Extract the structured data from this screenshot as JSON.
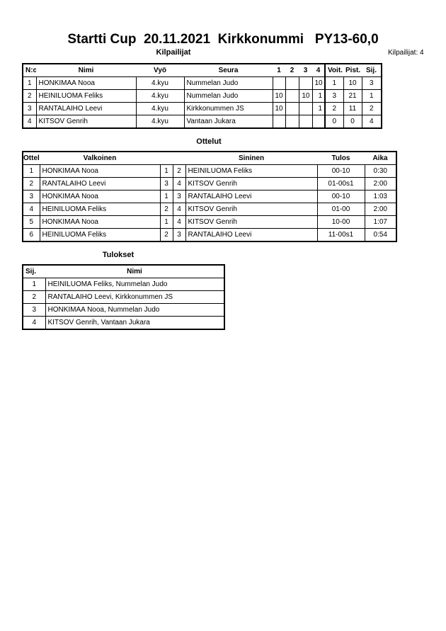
{
  "title": "Startti Cup  20.11.2021  Kirkkonummi   PY13-60,0",
  "competitors": {
    "heading": "Kilpailijat",
    "count_label": "Kilpailijat: 4",
    "columns": [
      "N:o",
      "Nimi",
      "Vyö",
      "Seura",
      "1",
      "2",
      "3",
      "4",
      "Voit.",
      "Pist.",
      "Sij."
    ],
    "rows": [
      {
        "no": "1",
        "name": "HONKIMAA Nooa",
        "belt": "4.kyu",
        "club": "Nummelan Judo",
        "s1": "",
        "s2": "",
        "s3": "",
        "s4": "10",
        "wins": "1",
        "points": "10",
        "rank": "3"
      },
      {
        "no": "2",
        "name": "HEINILUOMA Feliks",
        "belt": "4.kyu",
        "club": "Nummelan Judo",
        "s1": "10",
        "s2": "",
        "s3": "10",
        "s4": "1",
        "wins": "3",
        "points": "21",
        "rank": "1"
      },
      {
        "no": "3",
        "name": "RANTALAIHO Leevi",
        "belt": "4.kyu",
        "club": "Kirkkonummen JS",
        "s1": "10",
        "s2": "",
        "s3": "",
        "s4": "1",
        "wins": "2",
        "points": "11",
        "rank": "2"
      },
      {
        "no": "4",
        "name": "KITSOV Genrih",
        "belt": "4.kyu",
        "club": "Vantaan Jukara",
        "s1": "",
        "s2": "",
        "s3": "",
        "s4": "",
        "wins": "0",
        "points": "0",
        "rank": "4"
      }
    ]
  },
  "matches": {
    "heading": "Ottelut",
    "columns": [
      "Ottelu",
      "Valkoinen",
      "Sininen",
      "Tulos",
      "Aika"
    ],
    "rows": [
      {
        "no": "1",
        "white": "HONKIMAA Nooa",
        "wn": "1",
        "bn": "2",
        "blue": "HEINILUOMA Feliks",
        "result": "00-10",
        "time": "0:30"
      },
      {
        "no": "2",
        "white": "RANTALAIHO Leevi",
        "wn": "3",
        "bn": "4",
        "blue": "KITSOV Genrih",
        "result": "01-00s1",
        "time": "2:00"
      },
      {
        "no": "3",
        "white": "HONKIMAA Nooa",
        "wn": "1",
        "bn": "3",
        "blue": "RANTALAIHO Leevi",
        "result": "00-10",
        "time": "1:03"
      },
      {
        "no": "4",
        "white": "HEINILUOMA Feliks",
        "wn": "2",
        "bn": "4",
        "blue": "KITSOV Genrih",
        "result": "01-00",
        "time": "2:00"
      },
      {
        "no": "5",
        "white": "HONKIMAA Nooa",
        "wn": "1",
        "bn": "4",
        "blue": "KITSOV Genrih",
        "result": "10-00",
        "time": "1:07"
      },
      {
        "no": "6",
        "white": "HEINILUOMA Feliks",
        "wn": "2",
        "bn": "3",
        "blue": "RANTALAIHO Leevi",
        "result": "11-00s1",
        "time": "0:54"
      }
    ]
  },
  "results": {
    "heading": "Tulokset",
    "columns": [
      "Sij.",
      "Nimi"
    ],
    "rows": [
      {
        "rank": "1",
        "name": "HEINILUOMA Feliks, Nummelan Judo"
      },
      {
        "rank": "2",
        "name": "RANTALAIHO Leevi, Kirkkonummen JS"
      },
      {
        "rank": "3",
        "name": "HONKIMAA Nooa, Nummelan Judo"
      },
      {
        "rank": "4",
        "name": "KITSOV Genrih, Vantaan Jukara"
      }
    ]
  }
}
